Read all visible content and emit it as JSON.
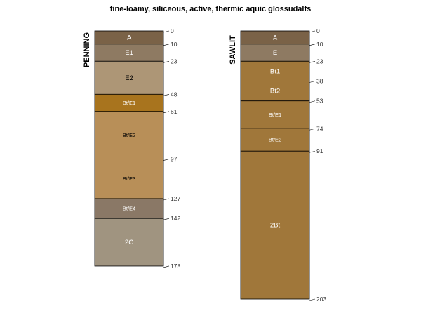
{
  "chart_data": {
    "type": "soil-profile",
    "title": "fine-loamy, siliceous, active, thermic aquic glossudalfs",
    "depth_unit": "cm",
    "depth_range": [
      0,
      203
    ],
    "profiles": [
      {
        "name": "PENNING",
        "horizons": [
          {
            "name": "A",
            "top": 0,
            "bottom": 10,
            "color": "#7A6247",
            "text_color": "#ffffff"
          },
          {
            "name": "E1",
            "top": 10,
            "bottom": 23,
            "color": "#8E7A62",
            "text_color": "#ffffff"
          },
          {
            "name": "E2",
            "top": 23,
            "bottom": 48,
            "color": "#AD9676",
            "text_color": "#000000"
          },
          {
            "name": "Bt/E1",
            "top": 48,
            "bottom": 61,
            "color": "#A8741E",
            "text_color": "#ffffff"
          },
          {
            "name": "Bt/E2",
            "top": 61,
            "bottom": 97,
            "color": "#B88F58",
            "text_color": "#000000"
          },
          {
            "name": "Bt/E3",
            "top": 97,
            "bottom": 127,
            "color": "#B88F58",
            "text_color": "#000000"
          },
          {
            "name": "Bt/E4",
            "top": 127,
            "bottom": 142,
            "color": "#8A7866",
            "text_color": "#ffffff"
          },
          {
            "name": "2C",
            "top": 142,
            "bottom": 178,
            "color": "#A09480",
            "text_color": "#ffffff"
          }
        ],
        "depth_ticks": [
          0,
          10,
          23,
          48,
          61,
          97,
          127,
          142,
          178
        ]
      },
      {
        "name": "SAWLIT",
        "horizons": [
          {
            "name": "A",
            "top": 0,
            "bottom": 10,
            "color": "#7A6247",
            "text_color": "#ffffff"
          },
          {
            "name": "E",
            "top": 10,
            "bottom": 23,
            "color": "#8E7A62",
            "text_color": "#ffffff"
          },
          {
            "name": "Bt1",
            "top": 23,
            "bottom": 38,
            "color": "#A0773A",
            "text_color": "#ffffff"
          },
          {
            "name": "Bt2",
            "top": 38,
            "bottom": 53,
            "color": "#A0773A",
            "text_color": "#ffffff"
          },
          {
            "name": "Bt/E1",
            "top": 53,
            "bottom": 74,
            "color": "#A0773A",
            "text_color": "#ffffff"
          },
          {
            "name": "Bt/E2",
            "top": 74,
            "bottom": 91,
            "color": "#A0773A",
            "text_color": "#ffffff"
          },
          {
            "name": "2Bt",
            "top": 91,
            "bottom": 203,
            "color": "#A0773A",
            "text_color": "#ffffff"
          }
        ],
        "depth_ticks": [
          0,
          10,
          23,
          38,
          53,
          74,
          91,
          203
        ]
      }
    ]
  }
}
